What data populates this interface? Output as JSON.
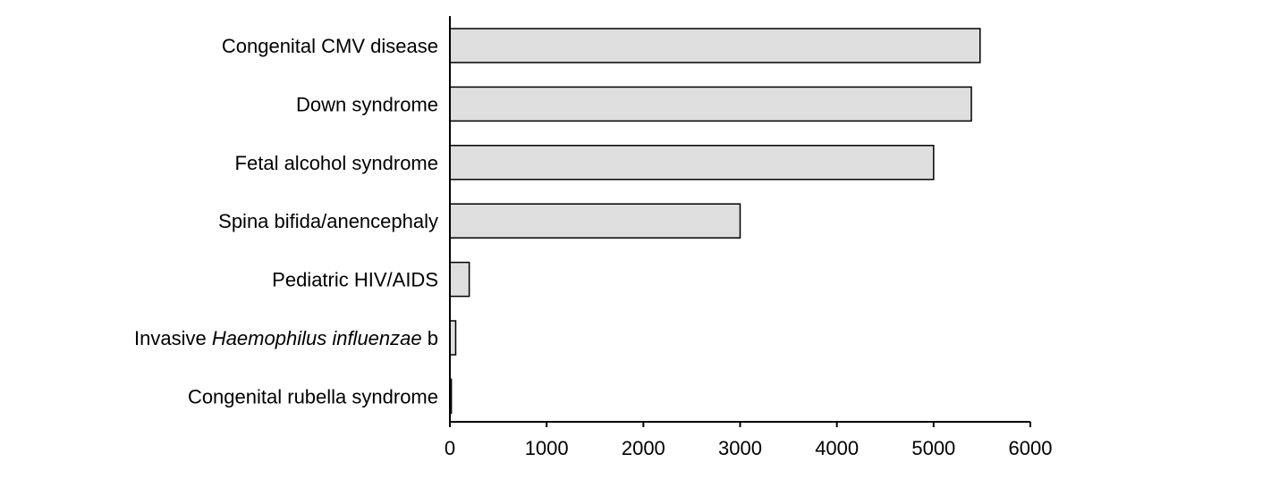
{
  "chart_data": {
    "type": "bar",
    "orientation": "horizontal",
    "categories": [
      {
        "parts": [
          {
            "text": "Congenital CMV disease",
            "italic": false
          }
        ]
      },
      {
        "parts": [
          {
            "text": "Down syndrome",
            "italic": false
          }
        ]
      },
      {
        "parts": [
          {
            "text": "Fetal alcohol syndrome",
            "italic": false
          }
        ]
      },
      {
        "parts": [
          {
            "text": "Spina bifida/anencephaly",
            "italic": false
          }
        ]
      },
      {
        "parts": [
          {
            "text": "Pediatric HIV/AIDS",
            "italic": false
          }
        ]
      },
      {
        "parts": [
          {
            "text": "Invasive ",
            "italic": false
          },
          {
            "text": "Haemophilus influenzae",
            "italic": true
          },
          {
            "text": " b",
            "italic": false
          }
        ]
      },
      {
        "parts": [
          {
            "text": "Congenital rubella syndrome",
            "italic": false
          }
        ]
      }
    ],
    "values": [
      5480,
      5390,
      5000,
      3000,
      200,
      60,
      15
    ],
    "xlim": [
      0,
      6000
    ],
    "xticks": [
      "0",
      "1000",
      "2000",
      "3000",
      "4000",
      "5000",
      "6000"
    ],
    "title": "",
    "xlabel": "",
    "ylabel": "",
    "grid": false,
    "legend": "none",
    "colors": {
      "bar_fill": "#dedede",
      "bar_stroke": "#000000",
      "axis": "#000000",
      "text": "#000000"
    }
  }
}
